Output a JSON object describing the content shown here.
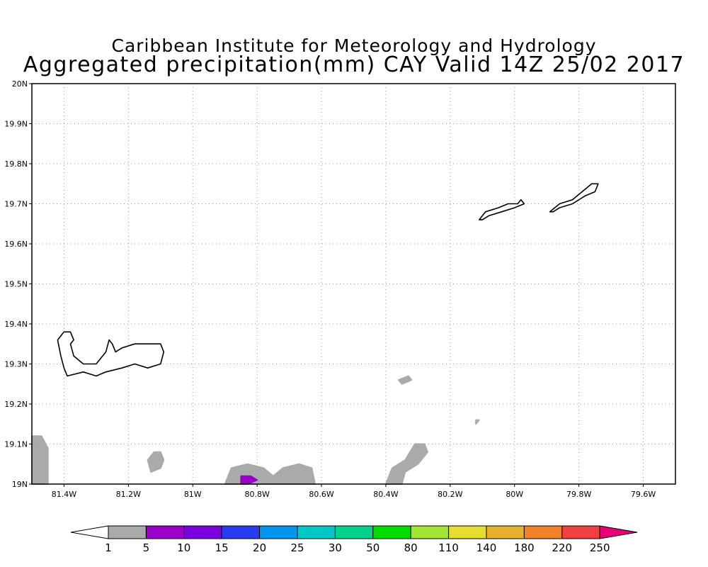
{
  "header": {
    "title_line1": "Caribbean Institute for Meteorology and Hydrology",
    "title_line2": "Aggregated precipitation(mm) CAY Valid 14Z 25/02 2017"
  },
  "map": {
    "lon_min": -81.5,
    "lon_max": -79.5,
    "lat_min": 19.0,
    "lat_max": 20.0,
    "grid_lines": true,
    "lat_ticks": [
      {
        "value": 20.0,
        "label": "20N"
      },
      {
        "value": 19.9,
        "label": "19.9N"
      },
      {
        "value": 19.8,
        "label": "19.8N"
      },
      {
        "value": 19.7,
        "label": "19.7N"
      },
      {
        "value": 19.6,
        "label": "19.6N"
      },
      {
        "value": 19.5,
        "label": "19.5N"
      },
      {
        "value": 19.4,
        "label": "19.4N"
      },
      {
        "value": 19.3,
        "label": "19.3N"
      },
      {
        "value": 19.2,
        "label": "19.2N"
      },
      {
        "value": 19.1,
        "label": "19.1N"
      },
      {
        "value": 19.0,
        "label": "19N"
      }
    ],
    "lon_ticks": [
      {
        "value": -81.4,
        "label": "81.4W"
      },
      {
        "value": -81.2,
        "label": "81.2W"
      },
      {
        "value": -81.0,
        "label": "81W"
      },
      {
        "value": -80.8,
        "label": "80.8W"
      },
      {
        "value": -80.6,
        "label": "80.6W"
      },
      {
        "value": -80.4,
        "label": "80.4W"
      },
      {
        "value": -80.2,
        "label": "80.2W"
      },
      {
        "value": -80.0,
        "label": "80W"
      },
      {
        "value": -79.8,
        "label": "79.8W"
      },
      {
        "value": -79.6,
        "label": "79.6W"
      }
    ],
    "colors": {
      "grid": "#999999",
      "coast": "#000000",
      "rain_1_5": "#aaaaaa",
      "rain_5_10": "#9a00c8"
    },
    "islands": [
      {
        "name": "Grand Cayman",
        "outline": [
          [
            -81.4,
            19.38
          ],
          [
            -81.38,
            19.38
          ],
          [
            -81.37,
            19.36
          ],
          [
            -81.38,
            19.35
          ],
          [
            -81.37,
            19.32
          ],
          [
            -81.34,
            19.3
          ],
          [
            -81.3,
            19.3
          ],
          [
            -81.27,
            19.33
          ],
          [
            -81.26,
            19.36
          ],
          [
            -81.25,
            19.35
          ],
          [
            -81.24,
            19.33
          ],
          [
            -81.22,
            19.34
          ],
          [
            -81.18,
            19.35
          ],
          [
            -81.15,
            19.35
          ],
          [
            -81.12,
            19.35
          ],
          [
            -81.1,
            19.35
          ],
          [
            -81.09,
            19.33
          ],
          [
            -81.1,
            19.3
          ],
          [
            -81.14,
            19.29
          ],
          [
            -81.18,
            19.3
          ],
          [
            -81.22,
            19.29
          ],
          [
            -81.27,
            19.28
          ],
          [
            -81.3,
            19.27
          ],
          [
            -81.34,
            19.28
          ],
          [
            -81.39,
            19.27
          ],
          [
            -81.4,
            19.29
          ],
          [
            -81.41,
            19.32
          ],
          [
            -81.42,
            19.36
          ]
        ]
      },
      {
        "name": "Little Cayman",
        "outline": [
          [
            -80.11,
            19.66
          ],
          [
            -80.09,
            19.68
          ],
          [
            -80.05,
            19.69
          ],
          [
            -80.02,
            19.7
          ],
          [
            -79.99,
            19.7
          ],
          [
            -79.98,
            19.71
          ],
          [
            -79.97,
            19.7
          ],
          [
            -80.0,
            19.69
          ],
          [
            -80.04,
            19.68
          ],
          [
            -80.08,
            19.67
          ],
          [
            -80.1,
            19.66
          ]
        ]
      },
      {
        "name": "Cayman Brac",
        "outline": [
          [
            -79.89,
            19.68
          ],
          [
            -79.86,
            19.7
          ],
          [
            -79.82,
            19.71
          ],
          [
            -79.79,
            19.73
          ],
          [
            -79.76,
            19.75
          ],
          [
            -79.74,
            19.75
          ],
          [
            -79.75,
            19.73
          ],
          [
            -79.78,
            19.72
          ],
          [
            -79.82,
            19.7
          ],
          [
            -79.86,
            19.69
          ],
          [
            -79.88,
            19.68
          ]
        ]
      }
    ],
    "precip_areas": [
      {
        "level": "rain_1_5",
        "outline": [
          [
            -81.5,
            19.0
          ],
          [
            -81.5,
            19.12
          ],
          [
            -81.47,
            19.12
          ],
          [
            -81.45,
            19.09
          ],
          [
            -81.45,
            19.0
          ]
        ]
      },
      {
        "level": "rain_1_5",
        "outline": [
          [
            -81.14,
            19.06
          ],
          [
            -81.12,
            19.08
          ],
          [
            -81.1,
            19.08
          ],
          [
            -81.09,
            19.06
          ],
          [
            -81.1,
            19.04
          ],
          [
            -81.13,
            19.03
          ]
        ]
      },
      {
        "level": "rain_1_5",
        "outline": [
          [
            -80.9,
            19.0
          ],
          [
            -80.88,
            19.04
          ],
          [
            -80.83,
            19.05
          ],
          [
            -80.78,
            19.04
          ],
          [
            -80.75,
            19.02
          ],
          [
            -80.72,
            19.04
          ],
          [
            -80.67,
            19.05
          ],
          [
            -80.63,
            19.04
          ],
          [
            -80.62,
            19.0
          ]
        ]
      },
      {
        "level": "rain_5_10",
        "outline": [
          [
            -80.85,
            19.0
          ],
          [
            -80.85,
            19.02
          ],
          [
            -80.82,
            19.02
          ],
          [
            -80.8,
            19.01
          ],
          [
            -80.83,
            19.0
          ]
        ]
      },
      {
        "level": "rain_1_5",
        "outline": [
          [
            -80.4,
            19.0
          ],
          [
            -80.38,
            19.04
          ],
          [
            -80.34,
            19.06
          ],
          [
            -80.31,
            19.1
          ],
          [
            -80.28,
            19.1
          ],
          [
            -80.27,
            19.08
          ],
          [
            -80.3,
            19.05
          ],
          [
            -80.34,
            19.03
          ],
          [
            -80.35,
            19.0
          ]
        ]
      },
      {
        "level": "rain_1_5",
        "outline": [
          [
            -80.36,
            19.26
          ],
          [
            -80.33,
            19.27
          ],
          [
            -80.32,
            19.26
          ],
          [
            -80.35,
            19.25
          ]
        ]
      },
      {
        "level": "rain_1_5",
        "outline": [
          [
            -80.12,
            19.16
          ],
          [
            -80.11,
            19.16
          ],
          [
            -80.12,
            19.15
          ]
        ]
      }
    ]
  },
  "colorbar": {
    "colors": [
      "#aaaaaa",
      "#9a00c8",
      "#7b00e0",
      "#2a3cf0",
      "#0096f0",
      "#00c8c8",
      "#00d28c",
      "#00dc00",
      "#a0e632",
      "#e6dc32",
      "#e6af2d",
      "#f08228",
      "#f04040",
      "#e6007a"
    ],
    "labels": [
      "1",
      "5",
      "10",
      "15",
      "20",
      "25",
      "30",
      "50",
      "80",
      "110",
      "140",
      "180",
      "220",
      "250"
    ]
  }
}
